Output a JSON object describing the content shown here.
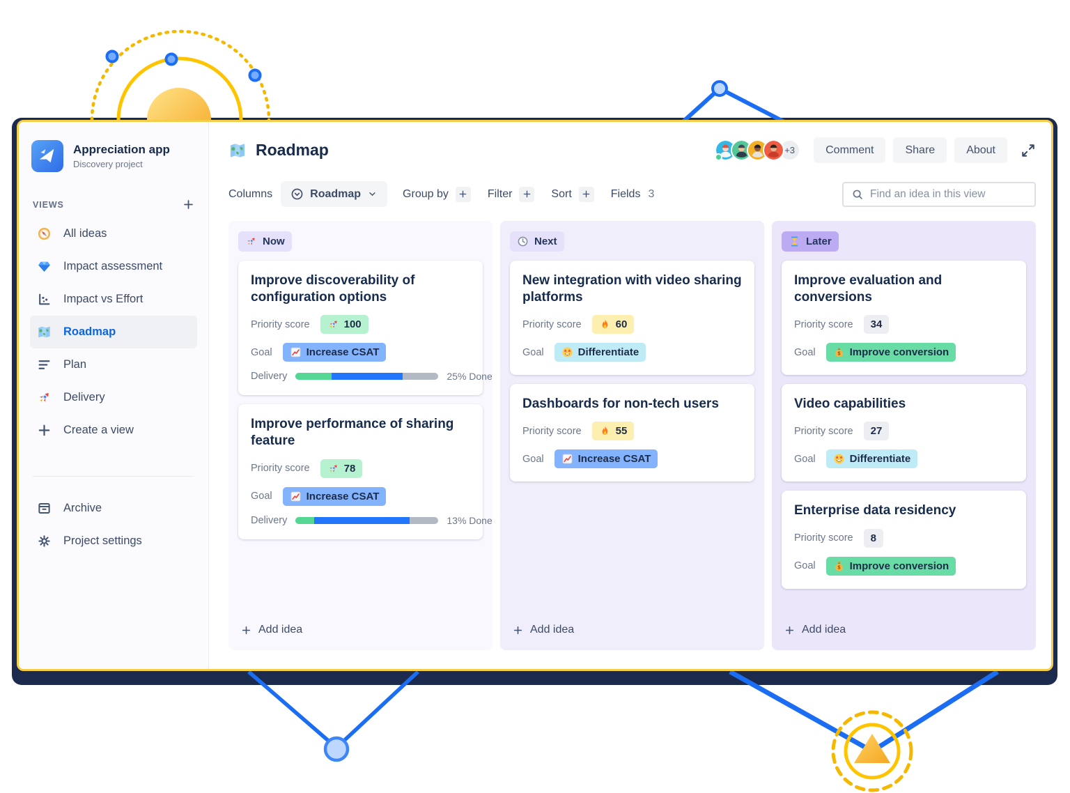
{
  "window": {
    "border_color": "#F5CD47",
    "shadow_color": "#1C2B4D"
  },
  "decorations": {
    "accent_yellow": "#FFC400",
    "accent_blue": "#1B6EF3",
    "shapes": [
      "sun-semicircle",
      "solid-orbit-circle",
      "dotted-orbit-circle",
      "blue-nodes",
      "blue-line-peak",
      "blue-line-valleys",
      "triangle-in-circles"
    ]
  },
  "sidebar": {
    "app_name": "Appreciation app",
    "app_subtitle": "Discovery project",
    "views_label": "VIEWS",
    "add_view_icon": "plus-icon",
    "items": [
      {
        "label": "All ideas",
        "icon": "compass-icon",
        "selected": false
      },
      {
        "label": "Impact assessment",
        "icon": "gem-icon",
        "selected": false
      },
      {
        "label": "Impact vs Effort",
        "icon": "scatter-chart-icon",
        "selected": false
      },
      {
        "label": "Roadmap",
        "icon": "map-icon",
        "selected": true
      },
      {
        "label": "Plan",
        "icon": "plan-lines-icon",
        "selected": false
      },
      {
        "label": "Delivery",
        "icon": "rocket-icon",
        "selected": false
      },
      {
        "label": "Create a view",
        "icon": "plus-icon",
        "selected": false
      }
    ],
    "footer_items": [
      {
        "label": "Archive",
        "icon": "archive-icon"
      },
      {
        "label": "Project settings",
        "icon": "gear-icon"
      }
    ]
  },
  "header": {
    "title": "Roadmap",
    "title_icon": "map-icon",
    "avatars": [
      {
        "bg": "#35B7E5",
        "skin": "#F6D7C8",
        "hair": "#E2543E",
        "shirt": "#F3F6F9",
        "online": true
      },
      {
        "bg": "#52C797",
        "skin": "#EFC49C",
        "hair": "#3E4A59",
        "shirt": "#2F3C4C",
        "online": false
      },
      {
        "bg": "#F2AE26",
        "skin": "#8D5A3B",
        "hair": "#23232E",
        "shirt": "#E8E2D9",
        "online": false
      },
      {
        "bg": "#EF5B43",
        "skin": "#E8B08C",
        "hair": "#35241E",
        "shirt": "#C93B2B",
        "online": false
      }
    ],
    "avatar_overflow": "+3",
    "buttons": [
      "Comment",
      "Share",
      "About"
    ],
    "expand_icon": "expand-icon"
  },
  "toolbar": {
    "columns_label": "Columns",
    "columns_value": "Roadmap",
    "columns_value_icon": "circle-chevron-down-icon",
    "columns_caret_icon": "chevron-down-icon",
    "group_by_label": "Group by",
    "filter_label": "Filter",
    "sort_label": "Sort",
    "add_icon": "plus-icon",
    "fields_label": "Fields",
    "fields_count": "3",
    "search_icon": "search-icon",
    "search_placeholder": "Find an idea in this view"
  },
  "board": {
    "add_idea_label": "Add idea",
    "add_idea_icon": "plus-icon",
    "field_labels": {
      "priority": "Priority score",
      "goal": "Goal",
      "delivery": "Delivery"
    },
    "progress_colors": {
      "done": "#53D793",
      "in_progress": "#2276FB",
      "to_do": "#B2B9C4"
    },
    "columns": [
      {
        "name": "Now",
        "icon": "rocket-icon",
        "badge_bg": "#E6E1FA",
        "column_bg": "#F9F8FE",
        "cards": [
          {
            "title": "Improve discoverability of configuration options",
            "priority": {
              "value": "100",
              "icon": "rocket-icon",
              "bg": "#B7F2D0"
            },
            "goal": {
              "label": "Increase CSAT",
              "icon": "chart-up-icon",
              "bg": "#83B3FC"
            },
            "delivery": {
              "done_pct": 25,
              "in_progress_pct": 50,
              "label": "25% Done"
            }
          },
          {
            "title": "Improve performance of sharing feature",
            "priority": {
              "value": "78",
              "icon": "rocket-icon",
              "bg": "#B7F2D0"
            },
            "goal": {
              "label": "Increase CSAT",
              "icon": "chart-up-icon",
              "bg": "#83B3FC"
            },
            "delivery": {
              "done_pct": 13,
              "in_progress_pct": 67,
              "label": "13% Done"
            }
          }
        ]
      },
      {
        "name": "Next",
        "icon": "clock-icon",
        "badge_bg": "#E6E1FA",
        "column_bg": "#F1EEFC",
        "cards": [
          {
            "title": "New integration with video sharing platforms",
            "priority": {
              "value": "60",
              "icon": "fire-icon",
              "bg": "#FCEFB0"
            },
            "goal": {
              "label": "Differentiate",
              "icon": "star-struck-icon",
              "bg": "#BEEBF6"
            }
          },
          {
            "title": "Dashboards for non-tech users",
            "priority": {
              "value": "55",
              "icon": "fire-icon",
              "bg": "#FCEFB0"
            },
            "goal": {
              "label": "Increase CSAT",
              "icon": "chart-up-icon",
              "bg": "#83B3FC"
            }
          }
        ]
      },
      {
        "name": "Later",
        "icon": "hourglass-icon",
        "badge_bg": "#BCAAF2",
        "column_bg": "#EBE6FA",
        "cards": [
          {
            "title": "Improve evaluation and conversions",
            "priority": {
              "value": "34",
              "icon": null,
              "bg": "#EDEEF1"
            },
            "goal": {
              "label": "Improve conversion",
              "icon": "money-bag-icon",
              "bg": "#69DCA5"
            }
          },
          {
            "title": "Video capabilities",
            "priority": {
              "value": "27",
              "icon": null,
              "bg": "#EDEEF1"
            },
            "goal": {
              "label": "Differentiate",
              "icon": "star-struck-icon",
              "bg": "#BEEBF6"
            }
          },
          {
            "title": "Enterprise data residency",
            "priority": {
              "value": "8",
              "icon": null,
              "bg": "#EDEEF1"
            },
            "goal": {
              "label": "Improve conversion",
              "icon": "money-bag-icon",
              "bg": "#69DCA5"
            }
          }
        ]
      }
    ]
  }
}
